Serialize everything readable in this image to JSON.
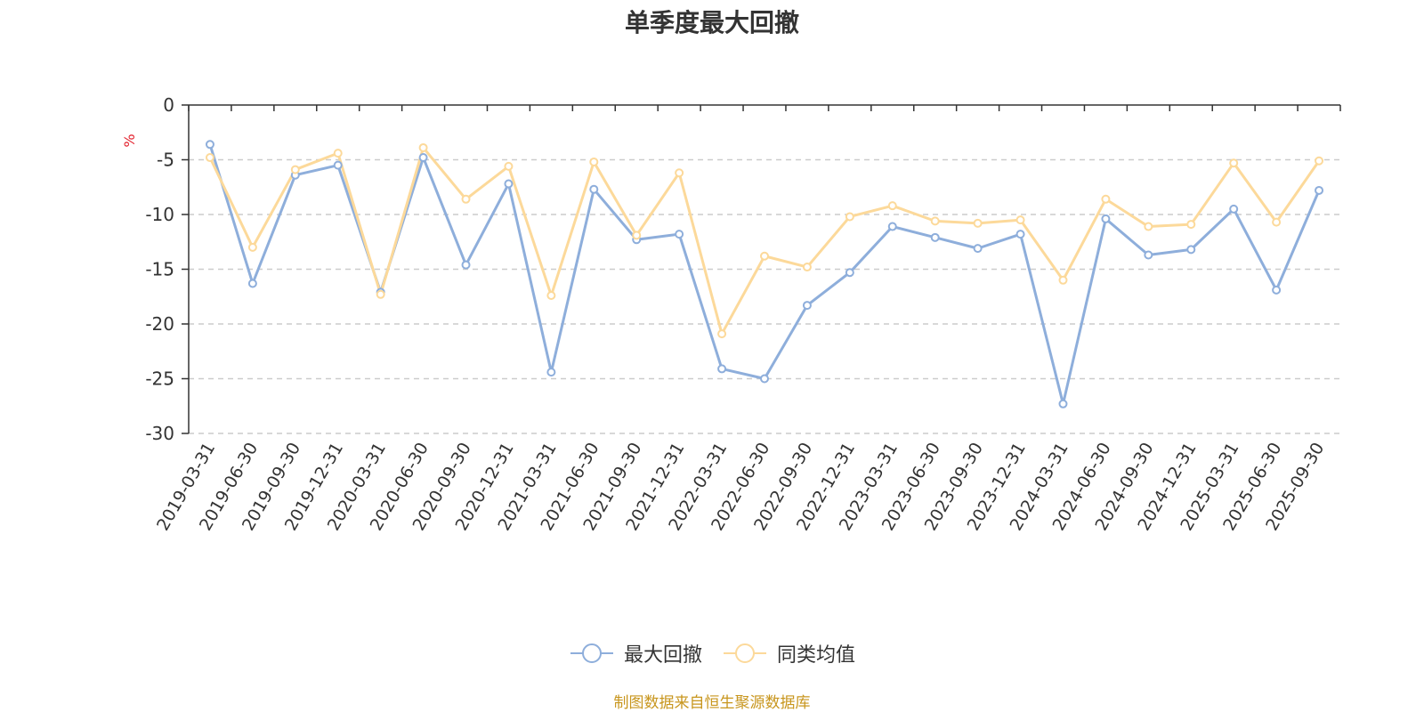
{
  "page_title": "单季度最大回撤",
  "source_note": "制图数据来自恒生聚源数据库",
  "chart_data": {
    "type": "line",
    "title": "单季度最大回撤",
    "ylabel": "%",
    "xlabel": "",
    "ylim": [
      -30,
      0
    ],
    "yticks": [
      0,
      -5,
      -10,
      -15,
      -20,
      -25,
      -30
    ],
    "grid": "horizontal dashed",
    "legend_position": "bottom-center",
    "categories": [
      "2019-03-31",
      "2019-06-30",
      "2019-09-30",
      "2019-12-31",
      "2020-03-31",
      "2020-06-30",
      "2020-09-30",
      "2020-12-31",
      "2021-03-31",
      "2021-06-30",
      "2021-09-30",
      "2021-12-31",
      "2022-03-31",
      "2022-06-30",
      "2022-09-30",
      "2022-12-31",
      "2023-03-31",
      "2023-06-30",
      "2023-09-30",
      "2023-12-31",
      "2024-03-31",
      "2024-06-30",
      "2024-09-30",
      "2024-12-31",
      "2025-03-31",
      "2025-06-30",
      "2025-09-30"
    ],
    "series": [
      {
        "name": "最大回撤",
        "color": "#8eaedb",
        "values": [
          -3.6,
          -16.3,
          -6.4,
          -5.5,
          -17.1,
          -4.8,
          -14.6,
          -7.2,
          -24.4,
          -7.7,
          -12.3,
          -11.8,
          -24.1,
          -25.0,
          -18.3,
          -15.3,
          -11.1,
          -12.1,
          -13.1,
          -11.8,
          -27.3,
          -10.4,
          -13.7,
          -13.2,
          -9.5,
          -16.9,
          -7.8
        ]
      },
      {
        "name": "同类均值",
        "color": "#fcd99a",
        "values": [
          -4.8,
          -13.0,
          -5.9,
          -4.4,
          -17.3,
          -3.9,
          -8.6,
          -5.6,
          -17.4,
          -5.2,
          -11.9,
          -6.2,
          -20.9,
          -13.8,
          -14.8,
          -10.2,
          -9.2,
          -10.6,
          -10.8,
          -10.5,
          -16.0,
          -8.6,
          -11.1,
          -10.9,
          -5.3,
          -10.7,
          -5.1
        ]
      }
    ]
  }
}
